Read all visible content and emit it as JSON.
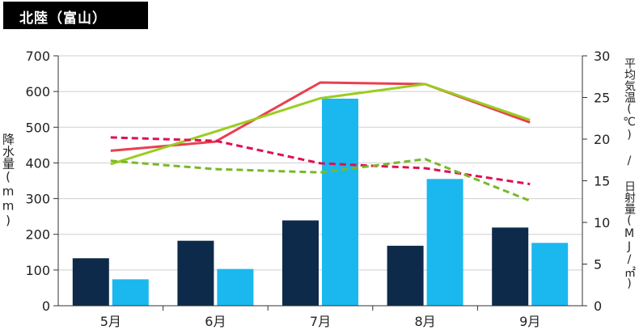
{
  "header": {
    "title": "北陸（富山）"
  },
  "chart_data": {
    "type": "bar",
    "categories": [
      "5月",
      "6月",
      "7月",
      "8月",
      "9月"
    ],
    "bar_series": [
      {
        "values": [
          133,
          182,
          239,
          168,
          219
        ],
        "color": "#0e2a4a"
      },
      {
        "values": [
          74,
          103,
          580,
          355,
          176
        ],
        "color": "#1ab8ee"
      }
    ],
    "line_series": [
      {
        "values": [
          18.6,
          19.7,
          26.8,
          26.6,
          22.0
        ],
        "color": "#e84050",
        "dashed": false
      },
      {
        "values": [
          17.0,
          20.9,
          24.9,
          26.6,
          22.3
        ],
        "color": "#9acd1e",
        "dashed": false
      },
      {
        "values": [
          20.2,
          19.8,
          17.1,
          16.5,
          14.6
        ],
        "color": "#e01050",
        "dashed": true
      },
      {
        "values": [
          17.4,
          16.4,
          16.0,
          17.6,
          12.6
        ],
        "color": "#7ab82a",
        "dashed": true
      }
    ],
    "y_left": {
      "label": "降水量(mm)",
      "min": 0,
      "max": 700,
      "step": 100
    },
    "y_right": {
      "label": "平均気温(℃) / 日射量(MJ/㎡)",
      "min": 0,
      "max": 30,
      "step": 5
    },
    "grid": "horizontal"
  }
}
